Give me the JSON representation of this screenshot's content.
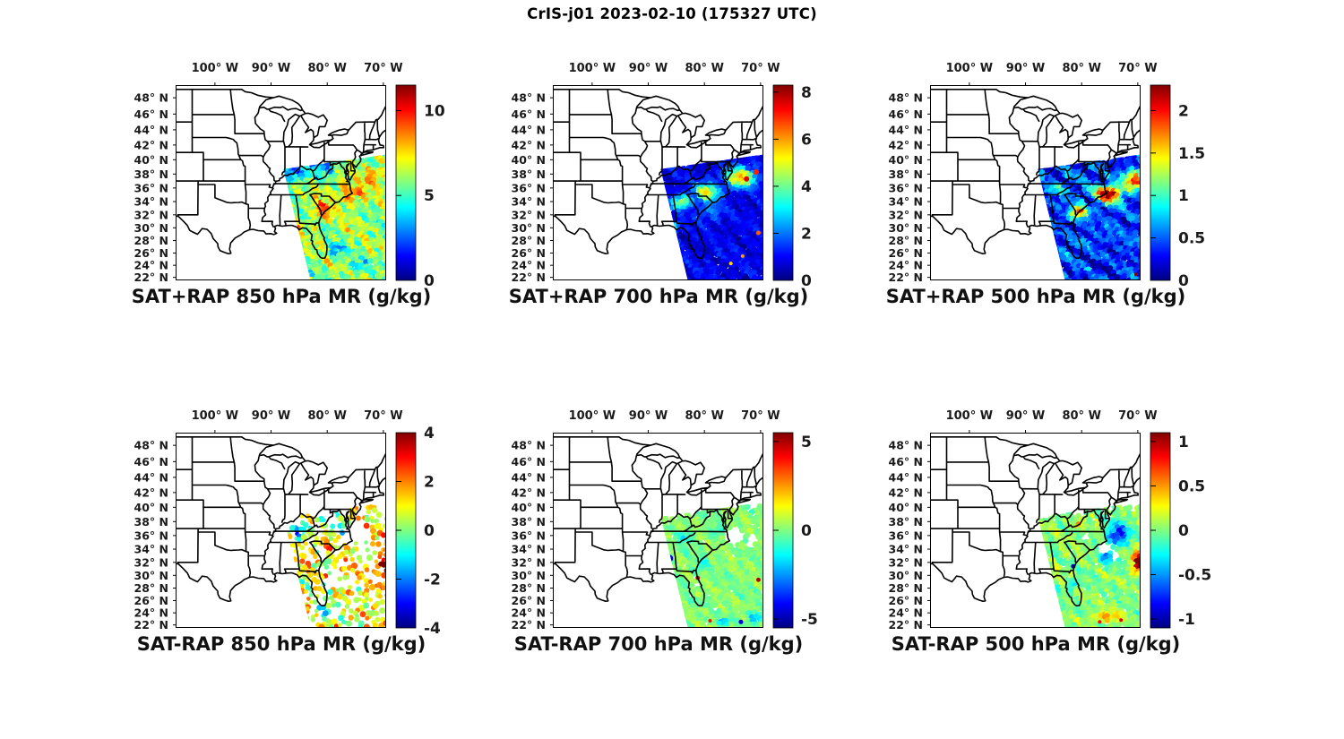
{
  "figure": {
    "title": "CrIS-j01 2023-02-10 (175327 UTC)",
    "background": "#ffffff"
  },
  "axes": {
    "projection": "mercator",
    "region": "Eastern United States with state boundaries and Great Lakes",
    "lon_range": [
      -107,
      -69.5
    ],
    "lat_range": [
      21.5,
      49.5
    ],
    "lon_tick_values": [
      -100,
      -90,
      -80,
      -70
    ],
    "lon_tick_labels": [
      "100° W",
      "90° W",
      "80° W",
      "70° W"
    ],
    "lat_tick_values": [
      48,
      46,
      44,
      42,
      40,
      38,
      36,
      34,
      32,
      30,
      28,
      26,
      24,
      22
    ],
    "lat_tick_labels": [
      "48° N",
      "46° N",
      "44° N",
      "42° N",
      "40° N",
      "38° N",
      "36° N",
      "34° N",
      "32° N",
      "30° N",
      "28° N",
      "26° N",
      "24° N",
      "22° N"
    ]
  },
  "chart_data": {
    "type": "heatmap",
    "subtype": "satellite-swath-over-map",
    "colormap": "jet",
    "grid": {
      "rows": 2,
      "cols": 3
    },
    "swath_extent": "Diagonal CrIS overpass swath covering the southeastern US and western Atlantic, from about (88W, 39N) at its northwest corner to the lower-right of each map",
    "panels": [
      {
        "caption": "SAT+RAP 850 hPa MR (g/kg)",
        "product": "SAT+RAP",
        "level": "850 hPa",
        "variable": "MR",
        "units": "g/kg",
        "colorbar": {
          "range": [
            0,
            11.5
          ],
          "tick_values": [
            0,
            5,
            10
          ],
          "tick_labels": [
            "0",
            "5",
            "10"
          ]
        },
        "coverage": "dense",
        "pattern": "Blue minimum (~1-3) over Kentucky/Tennessee along swath NW edge; orange-red ridge (~8-10) from South Carolina northeast offshore; yellow-green (~5-7) over Florida and Gulf; cyan-blue patches east of Florida"
      },
      {
        "caption": "SAT+RAP 700 hPa MR (g/kg)",
        "product": "SAT+RAP",
        "level": "700 hPa",
        "variable": "MR",
        "units": "g/kg",
        "colorbar": {
          "range": [
            0,
            8.3
          ],
          "tick_values": [
            0,
            2,
            4,
            6,
            8
          ],
          "tick_labels": [
            "0",
            "2",
            "4",
            "6",
            "8"
          ]
        },
        "coverage": "dense",
        "pattern": "Mostly dark blue (~0.5-1.5); yellow-orange moist band (~4-6) from Georgia through the Carolinas to the northeast map edge with small dark-red cores; scattered red specks in the far southeast"
      },
      {
        "caption": "SAT+RAP 500 hPa MR (g/kg)",
        "product": "SAT+RAP",
        "level": "500 hPa",
        "variable": "MR",
        "units": "g/kg",
        "colorbar": {
          "range": [
            0,
            2.3
          ],
          "tick_values": [
            0,
            0.5,
            1,
            1.5,
            2
          ],
          "tick_labels": [
            "0",
            "0.5",
            "1",
            "1.5",
            "2"
          ]
        },
        "coverage": "dense",
        "pattern": "Streaky dark blue background; crimson-red ridge (>2) from coastal Georgia/South Carolina northeast to the right edge; cyan streaks over Tennessee; very dry dark blue south of 27N"
      },
      {
        "caption": "SAT-RAP 850 hPa MR (g/kg)",
        "product": "SAT-RAP",
        "level": "850 hPa",
        "variable": "MR",
        "units": "g/kg",
        "colorbar": {
          "range": [
            -4,
            4
          ],
          "tick_values": [
            4,
            2,
            0,
            -2,
            -4
          ],
          "tick_labels": [
            "4",
            "2",
            "0",
            "-2",
            "-4"
          ]
        },
        "coverage": "speckled dots with gaps",
        "pattern": "Mostly yellow-orange positive differences (+1 to +2); cyan-blue negative dots over Kentucky/Virginia and east of Florida; dark-red maximum (+4) at the right edge near 31N; white data gap off the Virginia coast"
      },
      {
        "caption": "SAT-RAP 700 hPa MR (g/kg)",
        "product": "SAT-RAP",
        "level": "700 hPa",
        "variable": "MR",
        "units": "g/kg",
        "colorbar": {
          "range": [
            -5.5,
            5.5
          ],
          "tick_values": [
            5,
            0,
            -5
          ],
          "tick_labels": [
            "5",
            "0",
            "-5"
          ]
        },
        "coverage": "dense",
        "pattern": "Near-zero green field with cyan patches; isolated deep-blue dots over Alabama and near the south edge; tiny red specks near the northeast Florida coast and right edge; white gap off the mid-Atlantic coast"
      },
      {
        "caption": "SAT-RAP 500 hPa MR (g/kg)",
        "product": "SAT-RAP",
        "level": "500 hPa",
        "variable": "MR",
        "units": "g/kg",
        "colorbar": {
          "range": [
            -1.1,
            1.1
          ],
          "tick_values": [
            1,
            0.5,
            0,
            -0.5,
            -1
          ],
          "tick_labels": [
            "1",
            "0.5",
            "0",
            "-0.5",
            "-1"
          ]
        },
        "coverage": "dense",
        "pattern": "Green/cyan near-zero field; dark-blue negative region offshore of Virginia/North Carolina; red positive blob (+1) at the right edge near 32N; orange streaks near the south edge; small white data gaps"
      }
    ]
  }
}
